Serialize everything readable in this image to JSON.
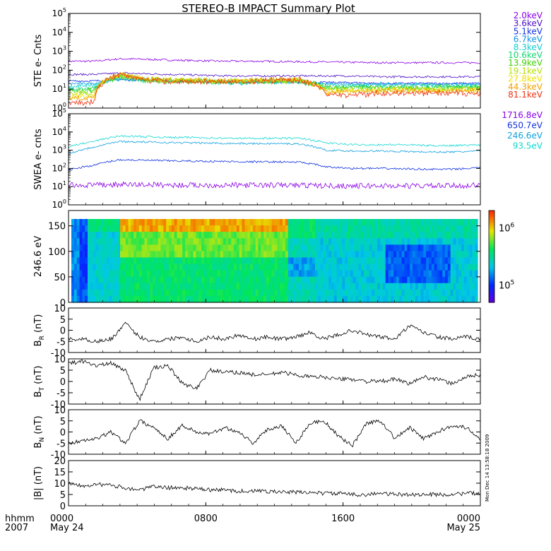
{
  "title": "STEREO-B IMPACT Summary Plot",
  "time_axis": {
    "format_label": "hhmm",
    "year_label": "2007",
    "ticks": [
      {
        "hours": 0,
        "label": "0000",
        "date": "May 24"
      },
      {
        "hours": 8,
        "label": "0800",
        "date": ""
      },
      {
        "hours": 16,
        "label": "1600",
        "date": ""
      },
      {
        "hours": 24,
        "label": "0000",
        "date": "May 25"
      }
    ],
    "range_hours": [
      0,
      24
    ]
  },
  "timestamp_text": "Mon Dec 14 13:58:18 2009",
  "ste_legend": [
    {
      "label": "2.0keV",
      "color": "#8a00e6"
    },
    {
      "label": "3.6keV",
      "color": "#4b10c8"
    },
    {
      "label": "5.1keV",
      "color": "#1030e0"
    },
    {
      "label": "6.7keV",
      "color": "#1090e8"
    },
    {
      "label": "8.3keV",
      "color": "#10d0d0"
    },
    {
      "label": "10.6keV",
      "color": "#10d870"
    },
    {
      "label": "13.9keV",
      "color": "#40d000"
    },
    {
      "label": "19.1keV",
      "color": "#b8e000"
    },
    {
      "label": "27.8keV",
      "color": "#f0e000"
    },
    {
      "label": "44.3keV",
      "color": "#f0a000"
    },
    {
      "label": "81.1keV",
      "color": "#f03010"
    }
  ],
  "swea_legend": [
    {
      "label": "1716.8eV",
      "color": "#8a00e6"
    },
    {
      "label": "650.7eV",
      "color": "#1030e0"
    },
    {
      "label": "246.6eV",
      "color": "#10a0e0"
    },
    {
      "label": "93.5eV",
      "color": "#10d8d0"
    }
  ],
  "chart_data": [
    {
      "type": "line",
      "ylabel": "STE e- Cnts",
      "yscale": "log",
      "ylim": [
        1,
        100000
      ],
      "ytick_exponents": [
        0,
        1,
        2,
        3,
        4,
        5
      ],
      "series": [
        {
          "name": "2.0keV",
          "y_approx": [
            300,
            300,
            400,
            380,
            340,
            320,
            300,
            300,
            290,
            280,
            270,
            260,
            250,
            250,
            250,
            250,
            250
          ]
        },
        {
          "name": "3.6keV",
          "y_approx": [
            60,
            60,
            70,
            65,
            60,
            55,
            50,
            50,
            50,
            50,
            50,
            50,
            45,
            45,
            45,
            45,
            45
          ]
        },
        {
          "name": "81.1keV",
          "y_approx": [
            2,
            2,
            60,
            30,
            25,
            25,
            25,
            25,
            30,
            30,
            5,
            5,
            6,
            6,
            6,
            6,
            6
          ]
        }
      ]
    },
    {
      "type": "line",
      "ylabel": "SWEA e- cnts",
      "yscale": "log",
      "ylim": [
        1,
        100000
      ],
      "ytick_exponents": [
        0,
        1,
        2,
        3,
        4,
        5
      ],
      "series": [
        {
          "name": "93.5eV",
          "y_approx": [
            1500,
            3000,
            6000,
            5500,
            5000,
            5000,
            4500,
            4500,
            4500,
            4500,
            2500,
            2000,
            2000,
            2000,
            1800,
            1800,
            2000
          ]
        },
        {
          "name": "246.6eV",
          "y_approx": [
            600,
            1500,
            3000,
            2800,
            2600,
            2500,
            2400,
            2300,
            2300,
            2200,
            1000,
            900,
            900,
            850,
            800,
            800,
            900
          ]
        },
        {
          "name": "650.7eV",
          "y_approx": [
            80,
            150,
            300,
            280,
            260,
            250,
            240,
            230,
            230,
            220,
            120,
            100,
            100,
            95,
            90,
            90,
            110
          ]
        },
        {
          "name": "1716.8eV",
          "y_approx": [
            12,
            12,
            13,
            13,
            12,
            12,
            12,
            12,
            12,
            12,
            11,
            11,
            11,
            11,
            11,
            11,
            12
          ]
        }
      ]
    },
    {
      "type": "heatmap",
      "ylabel": "246.6 eV",
      "ylim": [
        0,
        180
      ],
      "yticks": [
        0,
        50,
        100,
        150
      ],
      "colorbar": {
        "min": 50000,
        "max": 2000000,
        "scale": "log",
        "tick_labels": [
          {
            "value": 100000,
            "mantissa": "10",
            "exp": "5"
          },
          {
            "value": 1000000,
            "mantissa": "10",
            "exp": "6"
          }
        ]
      }
    },
    {
      "type": "line",
      "ylabel": "B",
      "ylabel_sub": "R",
      "ylabel_unit": "(nT)",
      "ylim": [
        -10,
        10
      ],
      "yticks": [
        -10,
        -5,
        0,
        5,
        10
      ],
      "y_approx": [
        -4,
        -4,
        -5,
        -4,
        3,
        -3,
        -5,
        -4,
        -3,
        -5,
        -3,
        -4,
        -2,
        -4,
        -3,
        -4,
        -3,
        -1,
        -4,
        -2,
        0,
        -2,
        -3,
        -4,
        2,
        -1,
        -3,
        -4,
        -3,
        -4
      ]
    },
    {
      "type": "line",
      "ylabel": "B",
      "ylabel_sub": "T",
      "ylabel_unit": "(nT)",
      "ylim": [
        -10,
        10
      ],
      "yticks": [
        -10,
        -5,
        0,
        5,
        10
      ],
      "y_approx": [
        8,
        9,
        7,
        8,
        5,
        -8,
        6,
        7,
        -1,
        -3,
        5,
        4,
        4,
        3,
        3,
        4,
        3,
        2,
        2,
        1,
        1,
        0,
        0,
        1,
        -1,
        2,
        1,
        -1,
        2,
        3
      ]
    },
    {
      "type": "line",
      "ylabel": "B",
      "ylabel_sub": "N",
      "ylabel_unit": "(nT)",
      "ylim": [
        -10,
        10
      ],
      "yticks": [
        -10,
        -5,
        0,
        5,
        10
      ],
      "y_approx": [
        -5,
        -4,
        -3,
        0,
        -5,
        5,
        2,
        -3,
        3,
        0,
        -1,
        2,
        0,
        -5,
        1,
        3,
        -5,
        4,
        5,
        -2,
        -6,
        4,
        5,
        -3,
        2,
        -3,
        0,
        3,
        2,
        -3
      ]
    },
    {
      "type": "line",
      "ylabel": "|B|",
      "ylabel_unit": "(nT)",
      "ylim": [
        0,
        20
      ],
      "yticks": [
        0,
        5,
        10,
        15,
        20
      ],
      "y_approx": [
        10,
        9,
        9.5,
        9,
        8,
        7,
        8.5,
        8,
        8,
        7.5,
        7,
        7,
        6.5,
        6.5,
        6.5,
        6,
        6,
        6,
        5.5,
        5.5,
        5,
        5,
        5.5,
        5,
        5,
        5,
        5,
        5,
        5.5,
        5.5
      ]
    }
  ]
}
